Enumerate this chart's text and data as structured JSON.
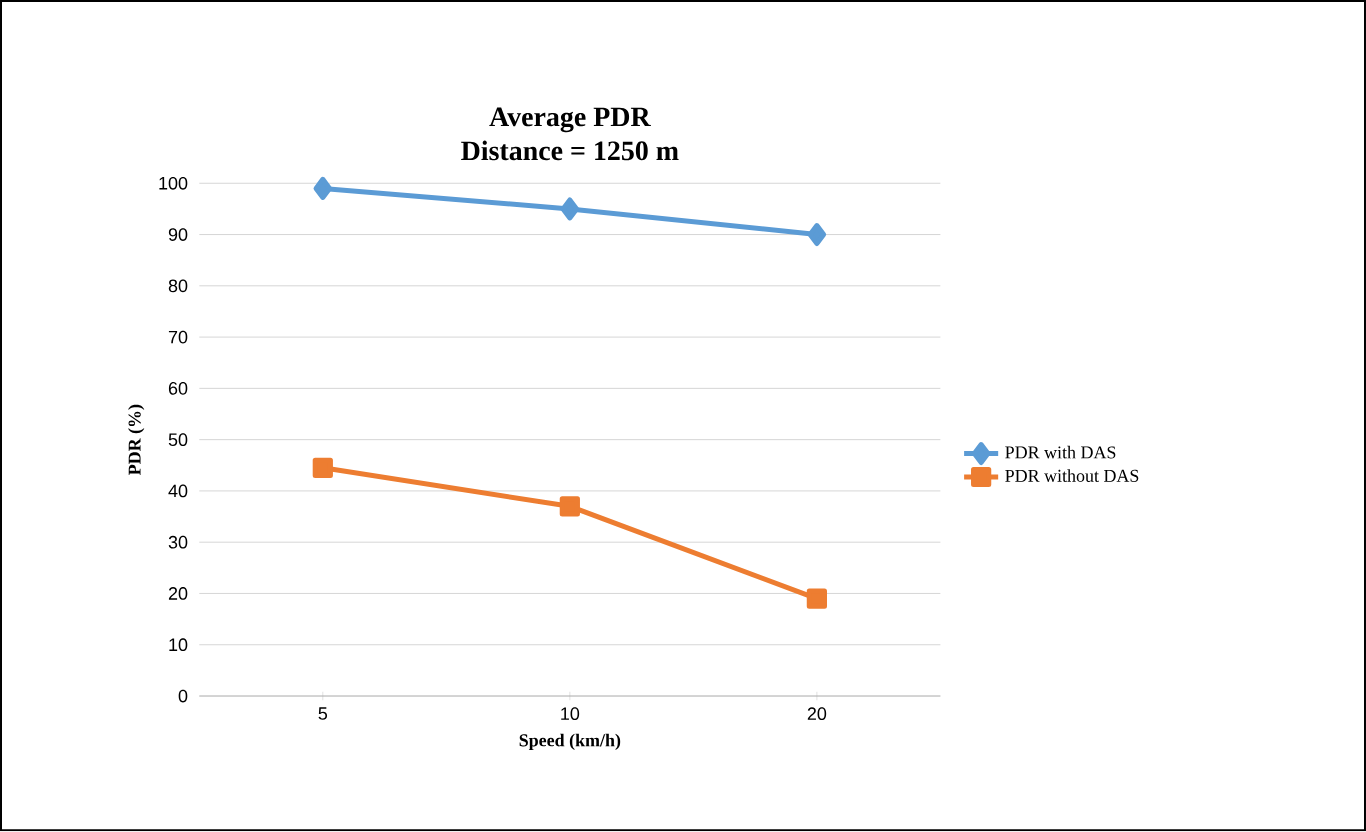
{
  "chart_data": {
    "type": "line",
    "title": "Average PDR",
    "subtitle": "Distance = 1250 m",
    "xlabel": "Speed (km/h)",
    "ylabel": "PDR (%)",
    "categories": [
      "5",
      "10",
      "20"
    ],
    "series": [
      {
        "name": "PDR with DAS",
        "color": "#5b9bd5",
        "marker": "diamond",
        "values": [
          99,
          95,
          90
        ]
      },
      {
        "name": "PDR without DAS",
        "color": "#ed7d31",
        "marker": "square",
        "values": [
          44.5,
          37,
          19
        ]
      }
    ],
    "ylim": [
      0,
      100
    ],
    "yticks": [
      0,
      10,
      20,
      30,
      40,
      50,
      60,
      70,
      80,
      90,
      100
    ],
    "grid": "y",
    "legend": "right"
  }
}
